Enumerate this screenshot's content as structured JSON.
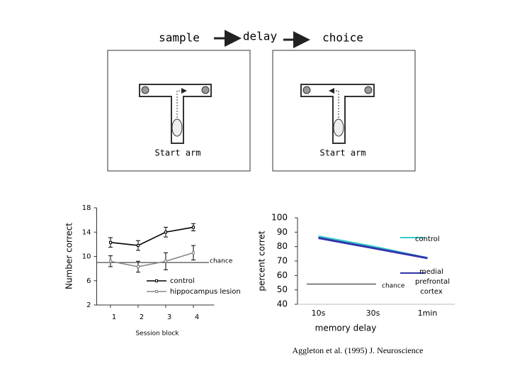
{
  "diagram": {
    "steps": [
      "sample",
      "delay",
      "choice"
    ],
    "start_labels": [
      "Start arm",
      "Start arm"
    ]
  },
  "chart_data": [
    {
      "type": "line",
      "x_label": "Session block",
      "y_label": "Number correct",
      "x": [
        1,
        2,
        3,
        4
      ],
      "xlim": [
        0.5,
        4.5
      ],
      "xticks": [
        1,
        2,
        3,
        4
      ],
      "ylim": [
        2,
        18
      ],
      "yticks": [
        2,
        6,
        10,
        14,
        18
      ],
      "chance": {
        "label": "chance",
        "value": 9
      },
      "series": [
        {
          "name": "control",
          "color": "#000000",
          "values": [
            12.3,
            11.8,
            14.0,
            14.8
          ],
          "errors": [
            0.8,
            0.8,
            0.8,
            0.6
          ]
        },
        {
          "name": "hippocampus lesion",
          "color": "#888888",
          "values": [
            9.2,
            8.3,
            9.2,
            10.6
          ],
          "errors": [
            0.9,
            0.9,
            1.4,
            1.2
          ]
        }
      ]
    },
    {
      "type": "line",
      "x_label": "memory delay",
      "y_label": "percent corret",
      "categories": [
        "10s",
        "30s",
        "1min"
      ],
      "ylim": [
        40,
        100
      ],
      "yticks": [
        40,
        50,
        60,
        70,
        80,
        90,
        100
      ],
      "chance": {
        "label": "chance",
        "value": 54
      },
      "series": [
        {
          "name": "control",
          "color": "#33cccc",
          "values": [
            87,
            80,
            72
          ]
        },
        {
          "name": "medial prefrontal cortex",
          "color": "#3333aa",
          "values": [
            86,
            79,
            72
          ]
        }
      ]
    }
  ],
  "citation": "Aggleton et al. (1995) J. Neuroscience"
}
